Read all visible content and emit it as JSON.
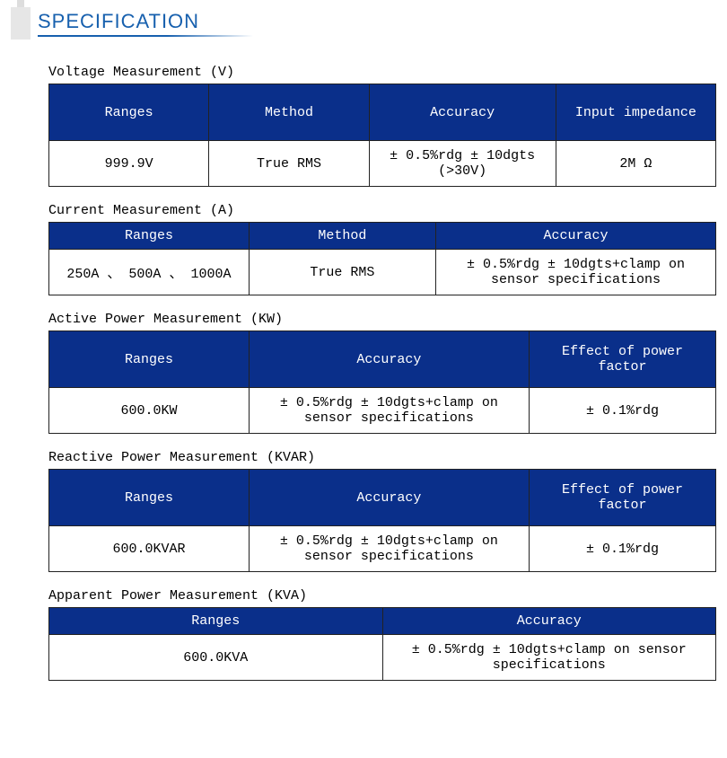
{
  "header_title": "SPECIFICATION",
  "colors": {
    "brand_blue": "#1760ae",
    "table_header": "#0a2f8a",
    "border": "#222222",
    "background": "#ffffff"
  },
  "sections": [
    {
      "title": "Voltage Measurement (V)",
      "columns": [
        "Ranges",
        "Method",
        "Accuracy",
        "Input impedance"
      ],
      "col_widths": [
        "24%",
        "24%",
        "28%",
        "24%"
      ],
      "tall_header": true,
      "rows": [
        [
          "999.9V",
          "True RMS",
          "± 0.5%rdg ± 10dgts (>30V)",
          "2M Ω"
        ]
      ]
    },
    {
      "title": "Current Measurement (A)",
      "columns": [
        "Ranges",
        "Method",
        "Accuracy"
      ],
      "col_widths": [
        "30%",
        "28%",
        "42%"
      ],
      "tall_header": false,
      "rows": [
        [
          "250A 、 500A 、 1000A",
          "True RMS",
          "± 0.5%rdg ± 10dgts+clamp on sensor specifications"
        ]
      ]
    },
    {
      "title": "Active Power Measurement (KW)",
      "columns": [
        "Ranges",
        "Accuracy",
        "Effect of power factor"
      ],
      "col_widths": [
        "30%",
        "42%",
        "28%"
      ],
      "tall_header": true,
      "rows": [
        [
          "600.0KW",
          "± 0.5%rdg ± 10dgts+clamp on sensor specifications",
          "± 0.1%rdg"
        ]
      ]
    },
    {
      "title": "Reactive Power Measurement (KVAR)",
      "columns": [
        "Ranges",
        "Accuracy",
        "Effect of power factor"
      ],
      "col_widths": [
        "30%",
        "42%",
        "28%"
      ],
      "tall_header": true,
      "rows": [
        [
          "600.0KVAR",
          "± 0.5%rdg ± 10dgts+clamp on sensor specifications",
          "± 0.1%rdg"
        ]
      ]
    },
    {
      "title": "Apparent Power Measurement (KVA)",
      "columns": [
        "Ranges",
        "Accuracy"
      ],
      "col_widths": [
        "50%",
        "50%"
      ],
      "tall_header": false,
      "rows": [
        [
          "600.0KVA",
          "± 0.5%rdg ± 10dgts+clamp on sensor specifications"
        ]
      ]
    }
  ]
}
